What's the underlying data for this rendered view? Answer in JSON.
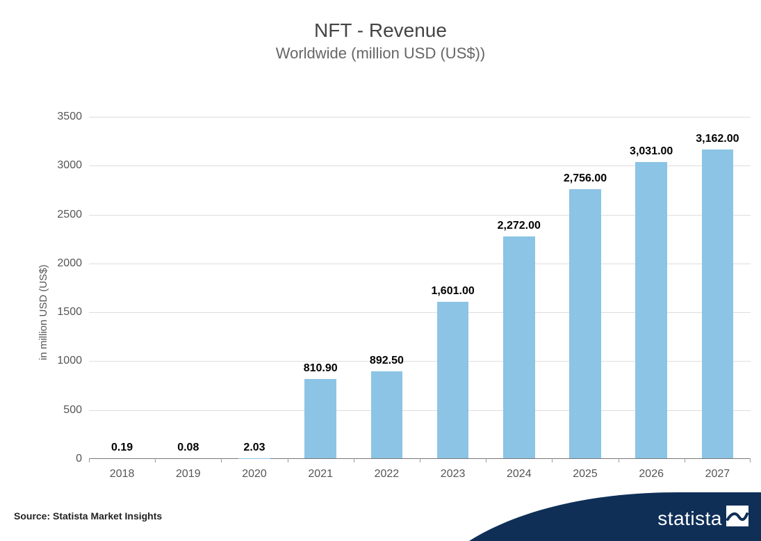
{
  "title": {
    "text": "NFT - Revenue",
    "fontsize": 28,
    "color": "#444444"
  },
  "subtitle": {
    "text": "Worldwide (million USD (US$))",
    "fontsize": 22,
    "color": "#666666"
  },
  "chart": {
    "type": "bar",
    "categories": [
      "2018",
      "2019",
      "2020",
      "2021",
      "2022",
      "2023",
      "2024",
      "2025",
      "2026",
      "2027"
    ],
    "values": [
      0.19,
      0.08,
      2.03,
      810.9,
      892.5,
      1601.0,
      2272.0,
      2756.0,
      3031.0,
      3162.0
    ],
    "value_labels": [
      "0.19",
      "0.08",
      "2.03",
      "810.90",
      "892.50",
      "1,601.00",
      "2,272.00",
      "2,756.00",
      "3,031.00",
      "3,162.00"
    ],
    "bar_color": "#8cc4e5",
    "bar_width": 0.48,
    "background_color": "#ffffff",
    "grid_color": "#bbbbbb",
    "axis_color": "#777777",
    "tick_fontsize": 16,
    "value_label_fontsize": 16,
    "value_label_color": "#000000",
    "value_label_weight": "700",
    "ylim": [
      0,
      3500
    ],
    "ytick_step": 500,
    "yticks": [
      0,
      500,
      1000,
      1500,
      2000,
      2500,
      3000,
      3500
    ],
    "y_label": "in million USD (US$)",
    "y_label_fontsize": 15,
    "y_label_color": "#555555"
  },
  "source": {
    "text": "Source: Statista Market Insights",
    "fontsize": 14,
    "color": "#222222"
  },
  "branding": {
    "swoosh_color": "#0f2f57",
    "logo_text": "statista",
    "logo_fontsize": 28,
    "logo_color": "#ffffff",
    "mark_fill": "#ffffff",
    "mark_accent": "#0f2f57"
  }
}
